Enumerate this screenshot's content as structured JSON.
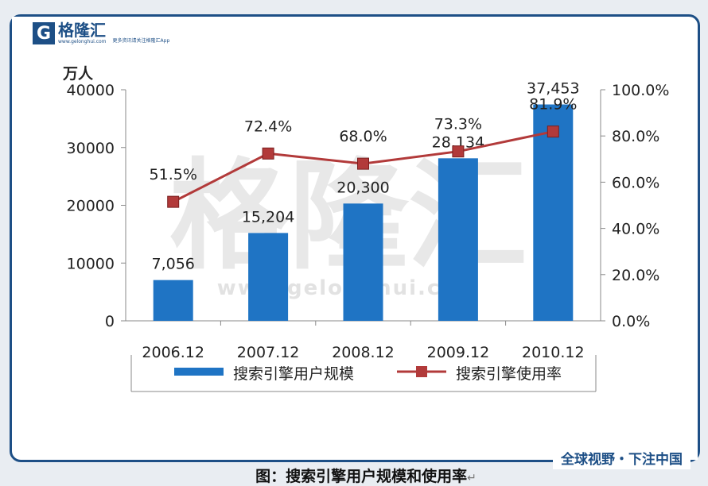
{
  "brand": {
    "logo_mark": "G",
    "name": "格隆汇",
    "url": "www.gelonghui.com",
    "slogan": "更多资讯请关注格隆汇App"
  },
  "footer": {
    "slogan": "全球视野・下注中国"
  },
  "watermark": {
    "name": "格隆汇",
    "url": "www.gelonghui.com"
  },
  "caption": "图：搜索引擎用户规模和使用率",
  "colors": {
    "bar": "#1f74c4",
    "line": "#b23a3a",
    "marker": "#b23a3a",
    "frame": "#1d4f86"
  },
  "chart_data": {
    "type": "bar",
    "categories": [
      "2006.12",
      "2007.12",
      "2008.12",
      "2009.12",
      "2010.12"
    ],
    "series": [
      {
        "name": "搜索引擎用户规模",
        "type": "bar",
        "axis": "left",
        "values": [
          7056,
          15204,
          20300,
          28134,
          37453
        ],
        "labels": [
          "7,056",
          "15,204",
          "20,300",
          "28,134",
          "37,453"
        ]
      },
      {
        "name": "搜索引擎使用率",
        "type": "line",
        "axis": "right",
        "values": [
          51.5,
          72.4,
          68.0,
          73.3,
          81.9
        ],
        "labels": [
          "51.5%",
          "72.4%",
          "68.0%",
          "73.3%",
          "81.9%"
        ]
      }
    ],
    "ylabel_left": "万人",
    "ylim_left": [
      0,
      40000
    ],
    "yticks_left": [
      "0",
      "10000",
      "20000",
      "30000",
      "40000"
    ],
    "ylim_right": [
      0,
      100
    ],
    "yticks_right": [
      "0.0%",
      "20.0%",
      "40.0%",
      "60.0%",
      "80.0%",
      "100.0%"
    ],
    "grid": false,
    "legend_position": "bottom"
  }
}
